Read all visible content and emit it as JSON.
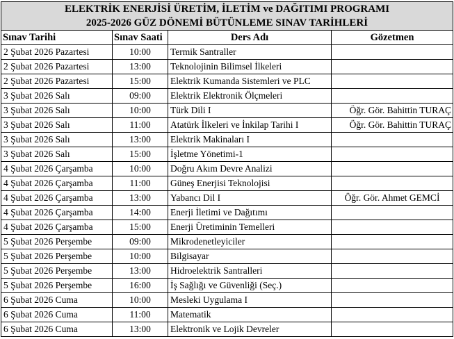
{
  "title": {
    "line1": "ELEKTRİK ENERJİSİ ÜRETİM, İLETİM ve DAĞITIMI PROGRAMI",
    "line2": "2025-2026 GÜZ DÖNEMİ BÜTÜNLEME SINAV TARİHLERİ"
  },
  "headers": {
    "date": "Sınav Tarihi",
    "time": "Sınav Saati",
    "course": "Ders Adı",
    "proctor": "Gözetmen"
  },
  "rows": [
    {
      "date": "2 Şubat 2026 Pazartesi",
      "time": "10:00",
      "course": "Termik Santraller",
      "proctor": ""
    },
    {
      "date": "2 Şubat 2026 Pazartesi",
      "time": "13:00",
      "course": "Teknolojinin Bilimsel İlkeleri",
      "proctor": ""
    },
    {
      "date": "2 Şubat 2026 Pazartesi",
      "time": "15:00",
      "course": "Elektrik Kumanda Sistemleri ve PLC",
      "proctor": ""
    },
    {
      "date": "3 Şubat 2026 Salı",
      "time": "09:00",
      "course": "Elektrik Elektronik Ölçmeleri",
      "proctor": ""
    },
    {
      "date": "3 Şubat 2026 Salı",
      "time": "10:00",
      "course": "Türk Dili I",
      "proctor": "Öğr. Gör. Bahittin TURAÇ"
    },
    {
      "date": "3 Şubat 2026 Salı",
      "time": "11:00",
      "course": "Atatürk İlkeleri ve İnkilap Tarihi I",
      "proctor": "Öğr. Gör. Bahittin TURAÇ"
    },
    {
      "date": "3 Şubat 2026 Salı",
      "time": "13:00",
      "course": "Elektrik Makinaları I",
      "proctor": ""
    },
    {
      "date": "3 Şubat 2026 Salı",
      "time": "15:00",
      "course": "İşletme Yönetimi-1",
      "proctor": ""
    },
    {
      "date": "4 Şubat 2026 Çarşamba",
      "time": "10:00",
      "course": "Doğru Akım Devre Analizi",
      "proctor": ""
    },
    {
      "date": "4 Şubat 2026 Çarşamba",
      "time": "11:00",
      "course": "Güneş Enerjisi Teknolojisi",
      "proctor": ""
    },
    {
      "date": "4 Şubat 2026 Çarşamba",
      "time": "13:00",
      "course": "Yabancı Dil I",
      "proctor": "Öğr. Gör. Ahmet GEMCİ"
    },
    {
      "date": "4 Şubat 2026 Çarşamba",
      "time": "14:00",
      "course": "Enerji İletimi ve Dağıtımı",
      "proctor": ""
    },
    {
      "date": "4 Şubat 2026 Çarşamba",
      "time": "15:00",
      "course": "Enerji Üretiminin Temelleri",
      "proctor": ""
    },
    {
      "date": "5 Şubat 2026 Perşembe",
      "time": "09:00",
      "course": "Mikrodenetleyiciler",
      "proctor": ""
    },
    {
      "date": "5 Şubat 2026 Perşembe",
      "time": "10:00",
      "course": "Bilgisayar",
      "proctor": ""
    },
    {
      "date": "5 Şubat 2026 Perşembe",
      "time": "13:00",
      "course": "Hidroelektrik Santralleri",
      "proctor": ""
    },
    {
      "date": "5 Şubat 2026 Perşembe",
      "time": "16:00",
      "course": "İş Sağlığı ve Güvenliği (Seç.)",
      "proctor": ""
    },
    {
      "date": "6 Şubat 2026 Cuma",
      "time": "10:00",
      "course": "Mesleki Uygulama I",
      "proctor": ""
    },
    {
      "date": "6 Şubat 2026 Cuma",
      "time": "11:00",
      "course": "Matematik",
      "proctor": ""
    },
    {
      "date": "6 Şubat 2026 Cuma",
      "time": "13:00",
      "course": "Elektronik ve Lojik Devreler",
      "proctor": ""
    }
  ]
}
